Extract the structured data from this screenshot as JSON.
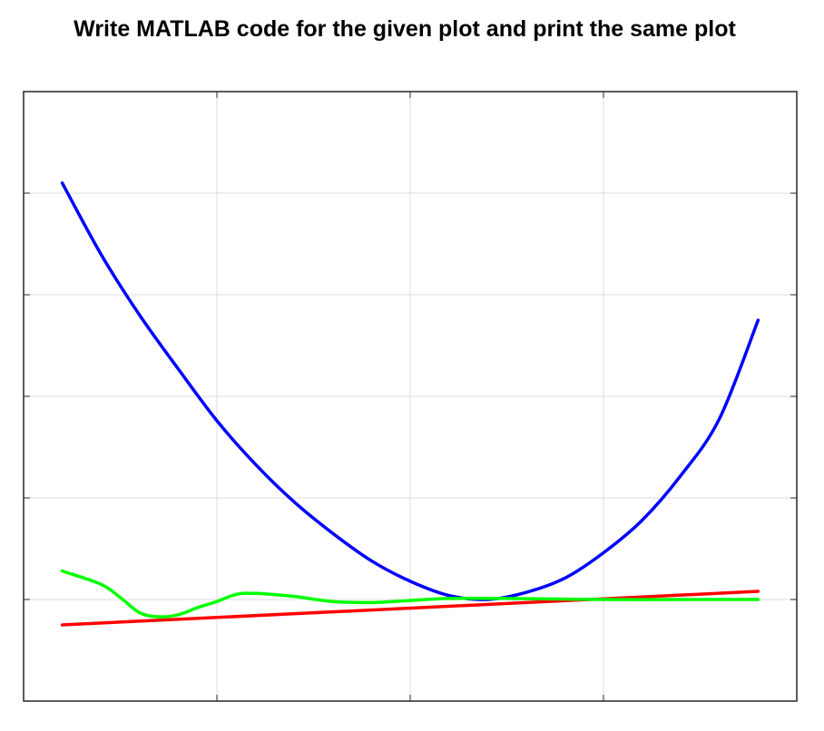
{
  "heading": "Write MATLAB code for the given plot and print the same plot",
  "chart_data": {
    "type": "line",
    "title": "",
    "xlabel": "",
    "ylabel": "",
    "xlim": [
      -1,
      3
    ],
    "ylim": [
      -1,
      5
    ],
    "grid": true,
    "x_ticks": [
      -1,
      0,
      1,
      2,
      3
    ],
    "y_ticks": [
      -1,
      0,
      1,
      2,
      3,
      4,
      5
    ],
    "tick_labels_shown": false,
    "series": [
      {
        "color": "#0000ff",
        "x": [
          -0.8,
          -0.6,
          -0.4,
          -0.2,
          0.0,
          0.2,
          0.4,
          0.6,
          0.8,
          1.0,
          1.2,
          1.4,
          1.6,
          1.8,
          2.0,
          2.2,
          2.4,
          2.6,
          2.8
        ],
        "y": [
          4.1,
          3.4,
          2.8,
          2.27,
          1.76,
          1.33,
          0.96,
          0.65,
          0.38,
          0.18,
          0.04,
          0.0,
          0.07,
          0.21,
          0.46,
          0.78,
          1.22,
          1.78,
          2.75
        ]
      },
      {
        "color": "#ff0000",
        "x": [
          -0.8,
          2.8
        ],
        "y": [
          -0.25,
          0.08
        ]
      },
      {
        "color": "#00ff00",
        "x": [
          -0.8,
          -0.6,
          -0.5,
          -0.4,
          -0.3,
          -0.2,
          -0.1,
          0.0,
          0.1,
          0.2,
          0.4,
          0.6,
          0.8,
          1.0,
          1.2,
          1.5,
          2.0,
          2.5,
          2.8
        ],
        "y": [
          0.28,
          0.15,
          0.02,
          -0.13,
          -0.17,
          -0.15,
          -0.08,
          -0.02,
          0.05,
          0.06,
          0.03,
          -0.02,
          -0.03,
          -0.01,
          0.01,
          0.01,
          0.0,
          0.0,
          0.0
        ]
      }
    ]
  }
}
